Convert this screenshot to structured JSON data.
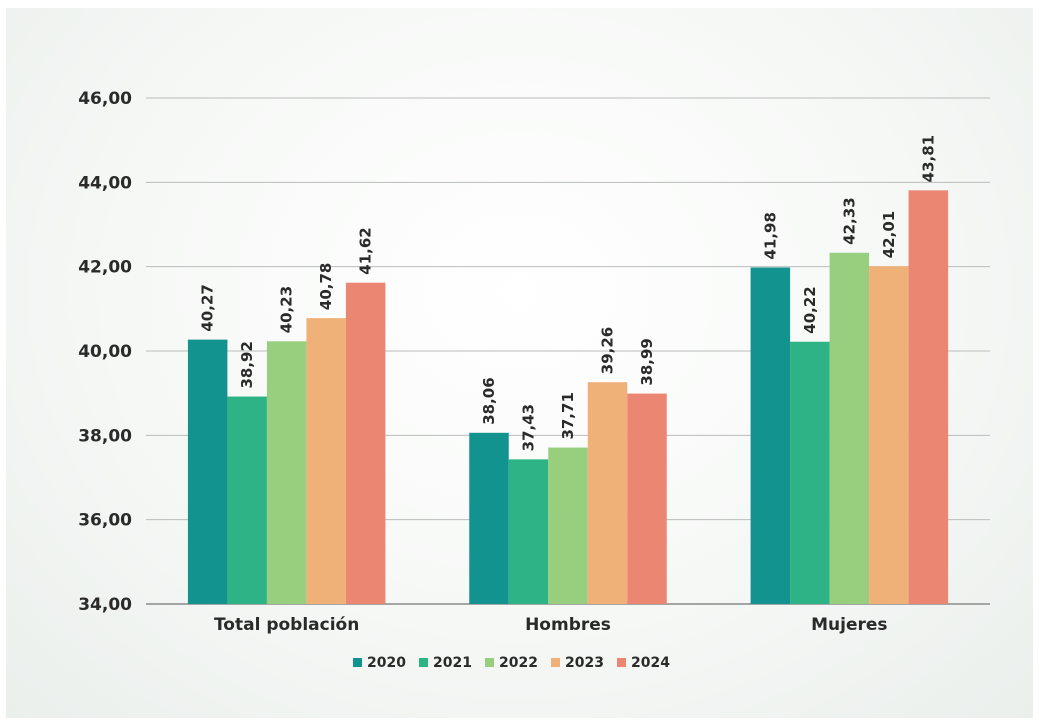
{
  "chart_data": {
    "type": "bar",
    "categories": [
      "Total población",
      "Hombres",
      "Mujeres"
    ],
    "series": [
      {
        "name": "2020",
        "color": "#13938f",
        "values": [
          40.27,
          38.06,
          41.98
        ],
        "labels": [
          "40,27",
          "38,06",
          "41,98"
        ]
      },
      {
        "name": "2021",
        "color": "#2db386",
        "values": [
          38.92,
          37.43,
          40.22
        ],
        "labels": [
          "38,92",
          "37,43",
          "40,22"
        ]
      },
      {
        "name": "2022",
        "color": "#98cf7e",
        "values": [
          40.23,
          37.71,
          42.33
        ],
        "labels": [
          "40,23",
          "37,71",
          "42,33"
        ]
      },
      {
        "name": "2023",
        "color": "#f0b179",
        "values": [
          40.78,
          39.26,
          42.01
        ],
        "labels": [
          "40,78",
          "39,26",
          "42,01"
        ]
      },
      {
        "name": "2024",
        "color": "#ea8672",
        "values": [
          41.62,
          38.99,
          43.81
        ],
        "labels": [
          "41,62",
          "38,99",
          "43,81"
        ]
      }
    ],
    "yticks": [
      34,
      36,
      38,
      40,
      42,
      44,
      46
    ],
    "ytick_labels": [
      "34,00",
      "36,00",
      "38,00",
      "40,00",
      "42,00",
      "44,00",
      "46,00"
    ],
    "ylim": [
      34,
      46
    ],
    "grid": true,
    "legend_position": "bottom-center",
    "title": "",
    "xlabel": "",
    "ylabel": ""
  }
}
